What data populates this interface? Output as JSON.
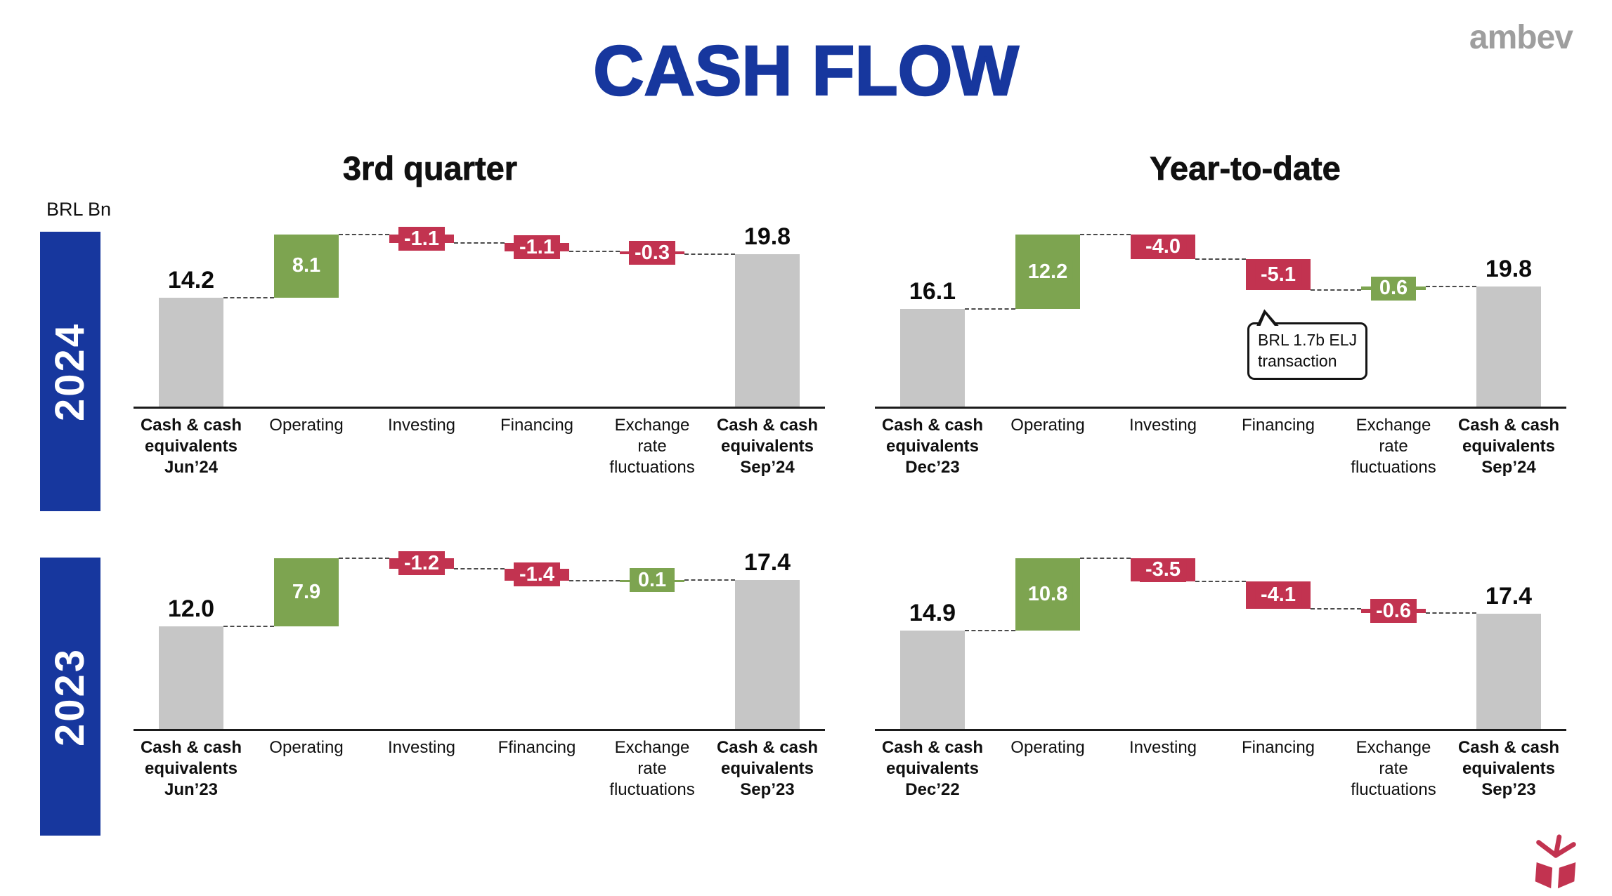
{
  "title": "CASH FLOW",
  "brand": "ambev",
  "unit_label": "BRL Bn",
  "columns": {
    "left": "3rd quarter",
    "right": "Year-to-date"
  },
  "rows": {
    "top": "2024",
    "bottom": "2023"
  },
  "colors": {
    "title_blue": "#17379E",
    "year_band_blue": "#17379E",
    "increase_green": "#7DA450",
    "decrease_red": "#C23350",
    "total_gray": "#C6C6C6",
    "connector": "#4A4A4A",
    "axis": "#1B1B1B",
    "brand_gray": "#9E9E9E"
  },
  "chart_data": [
    {
      "type": "waterfall",
      "name": "2024 3rd quarter",
      "year": "2024",
      "period": "3rd quarter",
      "unit": "BRL Bn",
      "bars": [
        {
          "label": "Cash & cash\nequivalents\nJun’24",
          "kind": "total",
          "value": 14.2,
          "display": "14.2"
        },
        {
          "label": "Operating",
          "kind": "delta",
          "value": 8.1,
          "display": "8.1"
        },
        {
          "label": "Investing",
          "kind": "delta",
          "value": -1.1,
          "display": "-1.1"
        },
        {
          "label": "Financing",
          "kind": "delta",
          "value": -1.1,
          "display": "-1.1"
        },
        {
          "label": "Exchange\nrate\nfluctuations",
          "kind": "delta",
          "value": -0.3,
          "display": "-0.3"
        },
        {
          "label": "Cash & cash\nequivalents\nSep’24",
          "kind": "total",
          "value": 19.8,
          "display": "19.8"
        }
      ]
    },
    {
      "type": "waterfall",
      "name": "2024 Year-to-date",
      "year": "2024",
      "period": "Year-to-date",
      "unit": "BRL Bn",
      "bars": [
        {
          "label": "Cash & cash\nequivalents\nDec’23",
          "kind": "total",
          "value": 16.1,
          "display": "16.1"
        },
        {
          "label": "Operating",
          "kind": "delta",
          "value": 12.2,
          "display": "12.2"
        },
        {
          "label": "Investing",
          "kind": "delta",
          "value": -4.0,
          "display": "-4.0"
        },
        {
          "label": "Financing",
          "kind": "delta",
          "value": -5.1,
          "display": "-5.1"
        },
        {
          "label": "Exchange\nrate\nfluctuations",
          "kind": "delta",
          "value": 0.6,
          "display": "0.6"
        },
        {
          "label": "Cash & cash\nequivalents\nSep’24",
          "kind": "total",
          "value": 19.8,
          "display": "19.8"
        }
      ],
      "callout": {
        "slot": 3,
        "text": "BRL 1.7b ELJ\ntransaction"
      }
    },
    {
      "type": "waterfall",
      "name": "2023 3rd quarter",
      "year": "2023",
      "period": "3rd quarter",
      "unit": "BRL Bn",
      "bars": [
        {
          "label": "Cash & cash\nequivalents\nJun’23",
          "kind": "total",
          "value": 12.0,
          "display": "12.0"
        },
        {
          "label": "Operating",
          "kind": "delta",
          "value": 7.9,
          "display": "7.9"
        },
        {
          "label": "Investing",
          "kind": "delta",
          "value": -1.2,
          "display": "-1.2"
        },
        {
          "label": "Ffinancing",
          "kind": "delta",
          "value": -1.4,
          "display": "-1.4"
        },
        {
          "label": "Exchange\nrate\nfluctuations",
          "kind": "delta",
          "value": 0.1,
          "display": "0.1"
        },
        {
          "label": "Cash & cash\nequivalents\nSep’23",
          "kind": "total",
          "value": 17.4,
          "display": "17.4"
        }
      ]
    },
    {
      "type": "waterfall",
      "name": "2023 Year-to-date",
      "year": "2023",
      "period": "Year-to-date",
      "unit": "BRL Bn",
      "bars": [
        {
          "label": "Cash & cash\nequivalents\nDec’22",
          "kind": "total",
          "value": 14.9,
          "display": "14.9"
        },
        {
          "label": "Operating",
          "kind": "delta",
          "value": 10.8,
          "display": "10.8"
        },
        {
          "label": "Investing",
          "kind": "delta",
          "value": -3.5,
          "display": "-3.5"
        },
        {
          "label": "Financing",
          "kind": "delta",
          "value": -4.1,
          "display": "-4.1"
        },
        {
          "label": "Exchange\nrate\nfluctuations",
          "kind": "delta",
          "value": -0.6,
          "display": "-0.6"
        },
        {
          "label": "Cash & cash\nequivalents\nSep’23",
          "kind": "total",
          "value": 17.4,
          "display": "17.4"
        }
      ]
    }
  ]
}
